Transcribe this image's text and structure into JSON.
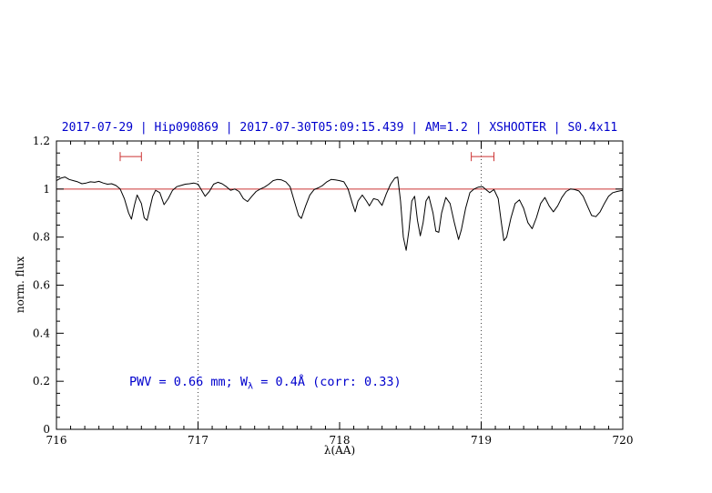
{
  "colors": {
    "title": "#0000cd",
    "annotation": "#0000cd",
    "reference": "#cc3333",
    "spectrum": "#000000",
    "dotted": "#444444"
  },
  "chart_data": {
    "type": "line",
    "title": "2017-07-29 | Hip090869 | 2017-07-30T05:09:15.439 | AM=1.2 | XSHOOTER | S0.4x11",
    "xlabel": "λ(AA)",
    "ylabel": "norm. flux",
    "xlim": [
      716,
      720
    ],
    "ylim": [
      0,
      1.2
    ],
    "grid": false,
    "legend": "none",
    "x_ticks": {
      "values": [
        716,
        717,
        718,
        719,
        720
      ],
      "labels": [
        "716",
        "717",
        "718",
        "719",
        "720"
      ],
      "minor_step": 0.1
    },
    "y_ticks": {
      "values": [
        0,
        0.2,
        0.4,
        0.6,
        0.8,
        1,
        1.2
      ],
      "labels": [
        "0",
        "0.2",
        "0.4",
        "0.6",
        "0.8",
        "1",
        "1.2"
      ],
      "minor_step": 0.05
    },
    "reference_hline": 1.0,
    "dotted_vlines": [
      717,
      719
    ],
    "range_markers": [
      {
        "x1": 716.45,
        "x2": 716.6,
        "y": 1.135
      },
      {
        "x1": 718.93,
        "x2": 719.09,
        "y": 1.135
      }
    ],
    "annotation": {
      "full": "PWV = 0.66 mm; W_λ = 0.4Å (corr: 0.33)",
      "part1": "PWV = 0.66 mm; W",
      "sub": "λ",
      "part2": " = 0.4Å (corr: 0.33)"
    },
    "series": [
      {
        "name": "normalized telluric spectrum",
        "points": [
          [
            716.0,
            1.035
          ],
          [
            716.03,
            1.045
          ],
          [
            716.06,
            1.05
          ],
          [
            716.09,
            1.04
          ],
          [
            716.12,
            1.035
          ],
          [
            716.15,
            1.03
          ],
          [
            716.18,
            1.022
          ],
          [
            716.21,
            1.025
          ],
          [
            716.24,
            1.03
          ],
          [
            716.27,
            1.028
          ],
          [
            716.3,
            1.032
          ],
          [
            716.33,
            1.025
          ],
          [
            716.36,
            1.02
          ],
          [
            716.39,
            1.022
          ],
          [
            716.42,
            1.015
          ],
          [
            716.45,
            1.0
          ],
          [
            716.48,
            0.96
          ],
          [
            716.51,
            0.9
          ],
          [
            716.53,
            0.875
          ],
          [
            716.55,
            0.93
          ],
          [
            716.57,
            0.975
          ],
          [
            716.6,
            0.94
          ],
          [
            716.62,
            0.88
          ],
          [
            716.64,
            0.87
          ],
          [
            716.66,
            0.92
          ],
          [
            716.68,
            0.97
          ],
          [
            716.7,
            0.995
          ],
          [
            716.73,
            0.985
          ],
          [
            716.76,
            0.935
          ],
          [
            716.79,
            0.96
          ],
          [
            716.82,
            0.995
          ],
          [
            716.85,
            1.01
          ],
          [
            716.88,
            1.015
          ],
          [
            716.91,
            1.02
          ],
          [
            716.94,
            1.022
          ],
          [
            716.97,
            1.025
          ],
          [
            717.0,
            1.02
          ],
          [
            717.03,
            0.99
          ],
          [
            717.05,
            0.97
          ],
          [
            717.08,
            0.99
          ],
          [
            717.11,
            1.02
          ],
          [
            717.14,
            1.028
          ],
          [
            717.17,
            1.022
          ],
          [
            717.2,
            1.01
          ],
          [
            717.23,
            0.995
          ],
          [
            717.26,
            1.0
          ],
          [
            717.29,
            0.99
          ],
          [
            717.32,
            0.96
          ],
          [
            717.35,
            0.948
          ],
          [
            717.38,
            0.97
          ],
          [
            717.41,
            0.99
          ],
          [
            717.44,
            1.0
          ],
          [
            717.47,
            1.008
          ],
          [
            717.5,
            1.02
          ],
          [
            717.53,
            1.035
          ],
          [
            717.56,
            1.04
          ],
          [
            717.59,
            1.038
          ],
          [
            717.62,
            1.03
          ],
          [
            717.65,
            1.01
          ],
          [
            717.68,
            0.95
          ],
          [
            717.71,
            0.89
          ],
          [
            717.73,
            0.878
          ],
          [
            717.76,
            0.93
          ],
          [
            717.79,
            0.975
          ],
          [
            717.82,
            0.998
          ],
          [
            717.85,
            1.005
          ],
          [
            717.88,
            1.015
          ],
          [
            717.91,
            1.03
          ],
          [
            717.94,
            1.04
          ],
          [
            717.97,
            1.038
          ],
          [
            718.0,
            1.035
          ],
          [
            718.03,
            1.03
          ],
          [
            718.06,
            1.0
          ],
          [
            718.09,
            0.94
          ],
          [
            718.11,
            0.905
          ],
          [
            718.13,
            0.95
          ],
          [
            718.16,
            0.975
          ],
          [
            718.19,
            0.95
          ],
          [
            718.21,
            0.93
          ],
          [
            718.24,
            0.96
          ],
          [
            718.27,
            0.955
          ],
          [
            718.3,
            0.932
          ],
          [
            718.33,
            0.98
          ],
          [
            718.36,
            1.02
          ],
          [
            718.39,
            1.045
          ],
          [
            718.41,
            1.05
          ],
          [
            718.43,
            0.95
          ],
          [
            718.45,
            0.8
          ],
          [
            718.47,
            0.745
          ],
          [
            718.49,
            0.83
          ],
          [
            718.51,
            0.95
          ],
          [
            718.53,
            0.97
          ],
          [
            718.55,
            0.87
          ],
          [
            718.57,
            0.805
          ],
          [
            718.59,
            0.86
          ],
          [
            718.61,
            0.95
          ],
          [
            718.63,
            0.97
          ],
          [
            718.66,
            0.9
          ],
          [
            718.68,
            0.825
          ],
          [
            718.7,
            0.82
          ],
          [
            718.72,
            0.9
          ],
          [
            718.75,
            0.965
          ],
          [
            718.78,
            0.94
          ],
          [
            718.81,
            0.86
          ],
          [
            718.84,
            0.79
          ],
          [
            718.86,
            0.83
          ],
          [
            718.89,
            0.92
          ],
          [
            718.92,
            0.985
          ],
          [
            718.95,
            1.0
          ],
          [
            718.98,
            1.008
          ],
          [
            719.01,
            1.01
          ],
          [
            719.04,
            0.995
          ],
          [
            719.06,
            0.985
          ],
          [
            719.09,
            0.998
          ],
          [
            719.12,
            0.96
          ],
          [
            719.14,
            0.87
          ],
          [
            719.16,
            0.785
          ],
          [
            719.18,
            0.8
          ],
          [
            719.21,
            0.88
          ],
          [
            719.24,
            0.94
          ],
          [
            719.27,
            0.955
          ],
          [
            719.3,
            0.92
          ],
          [
            719.33,
            0.86
          ],
          [
            719.36,
            0.835
          ],
          [
            719.39,
            0.88
          ],
          [
            719.42,
            0.94
          ],
          [
            719.45,
            0.965
          ],
          [
            719.48,
            0.93
          ],
          [
            719.51,
            0.905
          ],
          [
            719.54,
            0.93
          ],
          [
            719.57,
            0.965
          ],
          [
            719.6,
            0.99
          ],
          [
            719.63,
            1.0
          ],
          [
            719.66,
            0.998
          ],
          [
            719.69,
            0.992
          ],
          [
            719.72,
            0.97
          ],
          [
            719.75,
            0.93
          ],
          [
            719.78,
            0.89
          ],
          [
            719.81,
            0.885
          ],
          [
            719.84,
            0.905
          ],
          [
            719.87,
            0.94
          ],
          [
            719.9,
            0.97
          ],
          [
            719.93,
            0.985
          ],
          [
            719.96,
            0.99
          ],
          [
            720.0,
            0.995
          ]
        ]
      }
    ]
  }
}
